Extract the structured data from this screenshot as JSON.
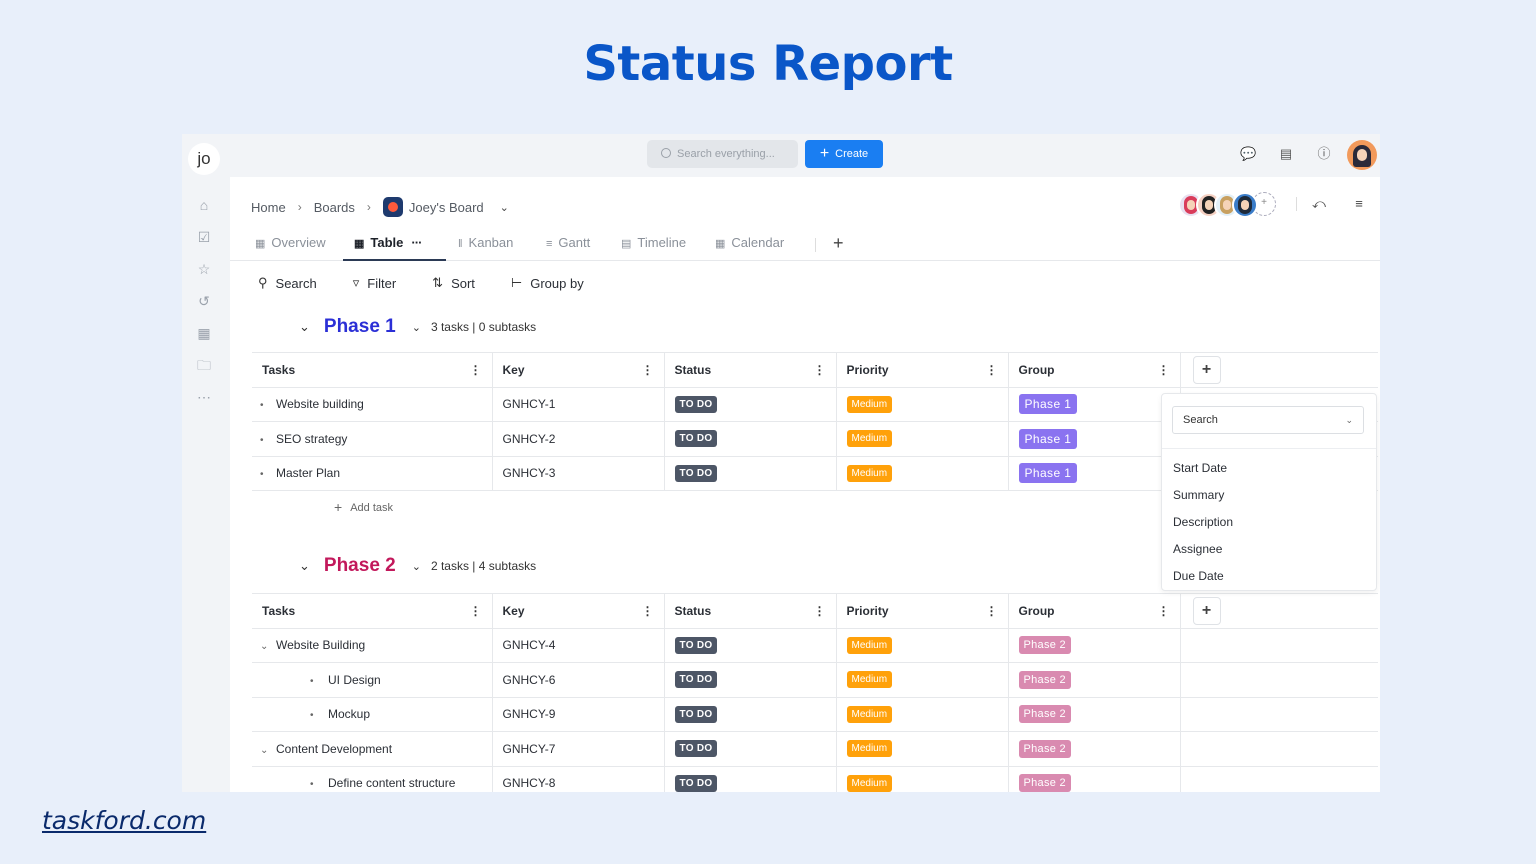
{
  "page": {
    "title": "Status Report",
    "footer": "taskford.com"
  },
  "topbar": {
    "workspace": "jo",
    "search_placeholder": "Search everything...",
    "create_label": "Create"
  },
  "breadcrumb": {
    "home": "Home",
    "boards": "Boards",
    "board": "Joey's Board"
  },
  "views": [
    {
      "label": "Overview",
      "icon": "overview-icon"
    },
    {
      "label": "Table",
      "icon": "table-icon",
      "active": true
    },
    {
      "label": "Kanban",
      "icon": "kanban-icon"
    },
    {
      "label": "Gantt",
      "icon": "gantt-icon"
    },
    {
      "label": "Timeline",
      "icon": "timeline-icon"
    },
    {
      "label": "Calendar",
      "icon": "calendar-icon"
    }
  ],
  "toolbar": {
    "search": "Search",
    "filter": "Filter",
    "sort": "Sort",
    "group_by": "Group by"
  },
  "columns": {
    "tasks": "Tasks",
    "key": "Key",
    "status": "Status",
    "priority": "Priority",
    "group": "Group"
  },
  "phase1": {
    "name": "Phase 1",
    "count": "3 tasks | 0 subtasks",
    "color": "#2b2fd6",
    "rows": [
      {
        "task": "Website building",
        "key": "GNHCY-1",
        "status": "TO DO",
        "priority": "Medium",
        "group": "Phase 1"
      },
      {
        "task": "SEO strategy",
        "key": "GNHCY-2",
        "status": "TO DO",
        "priority": "Medium",
        "group": "Phase 1"
      },
      {
        "task": "Master Plan",
        "key": "GNHCY-3",
        "status": "TO DO",
        "priority": "Medium",
        "group": "Phase 1"
      }
    ],
    "add_task": "Add task"
  },
  "phase2": {
    "name": "Phase 2",
    "count": "2 tasks | 4 subtasks",
    "color": "#c2185b",
    "rows": [
      {
        "task": "Website Building",
        "key": "GNHCY-4",
        "status": "TO DO",
        "priority": "Medium",
        "group": "Phase 2"
      },
      {
        "task": "UI Design",
        "key": "GNHCY-6",
        "status": "TO DO",
        "priority": "Medium",
        "group": "Phase 2"
      },
      {
        "task": "Mockup",
        "key": "GNHCY-9",
        "status": "TO DO",
        "priority": "Medium",
        "group": "Phase 2"
      },
      {
        "task": "Content Development",
        "key": "GNHCY-7",
        "status": "TO DO",
        "priority": "Medium",
        "group": "Phase 2"
      },
      {
        "task": "Define content structure",
        "key": "GNHCY-8",
        "status": "TO DO",
        "priority": "Medium",
        "group": "Phase 2"
      }
    ]
  },
  "dropdown": {
    "search": "Search",
    "items": [
      "Start Date",
      "Summary",
      "Description",
      "Assignee",
      "Due Date"
    ]
  },
  "colors": {
    "accent": "#1a7ef2",
    "title": "#0a56c8",
    "status_todo": "#4d5666",
    "priority_medium": "#ffa10a",
    "phase1_badge": "#8a73f0",
    "phase2_badge": "#d98ab0"
  }
}
